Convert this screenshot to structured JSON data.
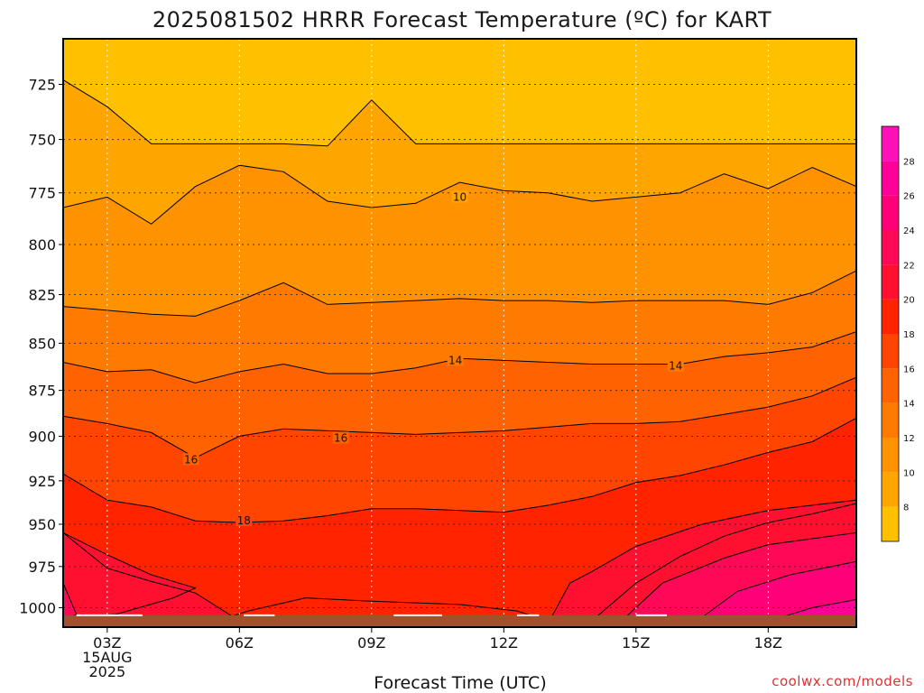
{
  "chart_data": {
    "type": "contour",
    "title": "2025081502 HRRR Forecast Temperature (ºC) for KART",
    "xlabel": "Forecast Time (UTC)",
    "ylabel": "",
    "x_hours": [
      2,
      3,
      4,
      5,
      6,
      7,
      8,
      9,
      10,
      11,
      12,
      13,
      14,
      15,
      16,
      17,
      18,
      19,
      20
    ],
    "x_ticks": [
      {
        "hour": 3,
        "lines": [
          "03Z",
          "15AUG",
          "2025"
        ]
      },
      {
        "hour": 6,
        "lines": [
          "06Z"
        ]
      },
      {
        "hour": 9,
        "lines": [
          "09Z"
        ]
      },
      {
        "hour": 12,
        "lines": [
          "12Z"
        ]
      },
      {
        "hour": 15,
        "lines": [
          "15Z"
        ]
      },
      {
        "hour": 18,
        "lines": [
          "18Z"
        ]
      }
    ],
    "y_ticks": [
      725,
      750,
      775,
      800,
      825,
      850,
      875,
      900,
      925,
      950,
      975,
      1000
    ],
    "ylim": [
      1012,
      705
    ],
    "xlim": [
      2,
      20
    ],
    "y_scale": "log-pressure",
    "grid": true,
    "contour_interval": 2,
    "contours": [
      {
        "level": 8,
        "y": [
          723,
          735,
          752,
          752,
          752,
          752,
          753,
          732,
          752,
          752,
          752,
          752,
          752,
          752,
          752,
          752,
          752,
          752,
          752
        ]
      },
      {
        "level": 10,
        "y": [
          782,
          777,
          790,
          772,
          762,
          765,
          779,
          782,
          780,
          770,
          774,
          775,
          779,
          777,
          775,
          766,
          773,
          763,
          772
        ]
      },
      {
        "level": 12,
        "y": [
          831,
          833,
          835,
          836,
          828,
          819,
          830,
          829,
          828,
          827,
          828,
          828,
          829,
          828,
          828,
          828,
          830,
          824,
          813
        ]
      },
      {
        "level": 14,
        "y": [
          860,
          865,
          864,
          871,
          865,
          861,
          866,
          866,
          863,
          858,
          859,
          860,
          861,
          861,
          861,
          857,
          855,
          852,
          844
        ]
      },
      {
        "level": 16,
        "y": [
          889,
          893,
          898,
          912,
          900,
          896,
          897,
          898,
          899,
          898,
          897,
          895,
          893,
          893,
          892,
          888,
          884,
          878,
          868
        ]
      },
      {
        "level": 18,
        "y": [
          921,
          936,
          940,
          948,
          949,
          948,
          945,
          941,
          941,
          942,
          943,
          939,
          934,
          926,
          922,
          916,
          909,
          903,
          890
        ]
      },
      {
        "level": 20,
        "y": [
          955,
          976,
          984,
          991,
          1008,
          1008,
          1008,
          1008,
          1008,
          1008,
          1008,
          1008,
          1008,
          985,
          969,
          957,
          949,
          944,
          938
        ]
      }
    ],
    "labels": [
      {
        "text": "10",
        "hour": 11.0,
        "p": 777
      },
      {
        "text": "14",
        "hour": 10.9,
        "p": 859
      },
      {
        "text": "14",
        "hour": 15.9,
        "p": 862
      },
      {
        "text": "16",
        "hour": 4.9,
        "p": 913
      },
      {
        "text": "16",
        "hour": 8.3,
        "p": 901
      },
      {
        "text": "18",
        "hour": 6.1,
        "p": 948
      }
    ],
    "colorbar": {
      "ticks": [
        8,
        10,
        12,
        14,
        16,
        18,
        20,
        22,
        24,
        26,
        28
      ],
      "bands": [
        {
          "from": 6,
          "to": 8,
          "color": "#FFC000"
        },
        {
          "from": 8,
          "to": 10,
          "color": "#FFA500"
        },
        {
          "from": 10,
          "to": 12,
          "color": "#FF9200"
        },
        {
          "from": 12,
          "to": 14,
          "color": "#FF7B00"
        },
        {
          "from": 14,
          "to": 16,
          "color": "#FF6200"
        },
        {
          "from": 16,
          "to": 18,
          "color": "#FF4500"
        },
        {
          "from": 18,
          "to": 20,
          "color": "#FF2300"
        },
        {
          "from": 20,
          "to": 22,
          "color": "#FF1030"
        },
        {
          "from": 22,
          "to": 24,
          "color": "#FF0858"
        },
        {
          "from": 24,
          "to": 26,
          "color": "#FF0078"
        },
        {
          "from": 26,
          "to": 28,
          "color": "#FF0098"
        },
        {
          "from": 28,
          "to": 30,
          "color": "#FF10B8"
        }
      ]
    },
    "ground_color": "#A0522D"
  },
  "credit": "coolwx.com/models"
}
